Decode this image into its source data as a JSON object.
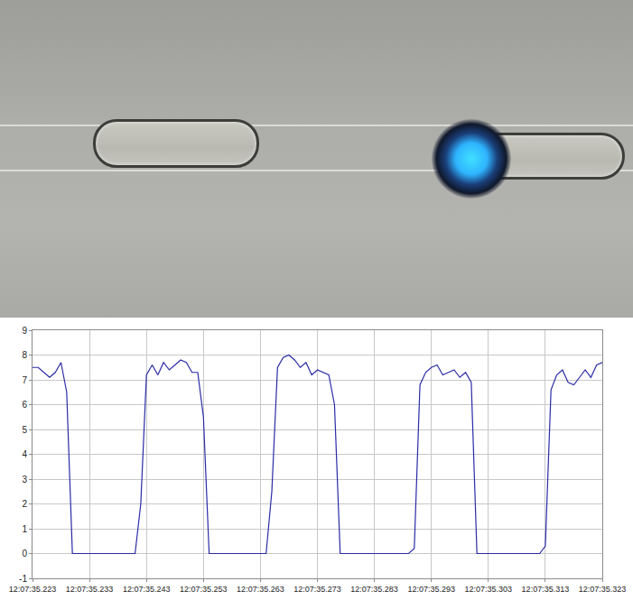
{
  "chart_data": {
    "type": "line",
    "color": "#2b2ba6",
    "x": [
      35.223,
      35.224,
      35.225,
      35.226,
      35.227,
      35.228,
      35.229,
      35.23,
      35.231,
      35.232,
      35.233,
      35.234,
      35.235,
      35.236,
      35.237,
      35.238,
      35.239,
      35.24,
      35.241,
      35.242,
      35.243,
      35.244,
      35.245,
      35.246,
      35.247,
      35.248,
      35.249,
      35.25,
      35.251,
      35.252,
      35.253,
      35.254,
      35.255,
      35.256,
      35.257,
      35.258,
      35.259,
      35.26,
      35.261,
      35.262,
      35.263,
      35.264,
      35.265,
      35.266,
      35.267,
      35.268,
      35.269,
      35.27,
      35.271,
      35.272,
      35.273,
      35.274,
      35.275,
      35.276,
      35.277,
      35.278,
      35.279,
      35.28,
      35.281,
      35.282,
      35.283,
      35.284,
      35.285,
      35.286,
      35.287,
      35.288,
      35.289,
      35.29,
      35.291,
      35.292,
      35.293,
      35.294,
      35.295,
      35.296,
      35.297,
      35.298,
      35.299,
      35.3,
      35.301,
      35.302,
      35.303,
      35.304,
      35.305,
      35.306,
      35.307,
      35.308,
      35.309,
      35.31,
      35.311,
      35.312,
      35.313,
      35.314,
      35.315,
      35.316,
      35.317,
      35.318,
      35.319,
      35.32,
      35.321,
      35.322,
      35.323
    ],
    "values": [
      7.5,
      7.5,
      7.3,
      7.1,
      7.3,
      7.7,
      6.5,
      0,
      0,
      0,
      0,
      0,
      0,
      0,
      0,
      0,
      0,
      0,
      0,
      2,
      7.2,
      7.6,
      7.2,
      7.7,
      7.4,
      7.6,
      7.8,
      7.7,
      7.3,
      7.3,
      5.5,
      0,
      0,
      0,
      0,
      0,
      0,
      0,
      0,
      0,
      0,
      0,
      2.5,
      7.5,
      7.9,
      8.0,
      7.8,
      7.5,
      7.7,
      7.2,
      7.4,
      7.3,
      7.2,
      6.0,
      0,
      0,
      0,
      0,
      0,
      0,
      0,
      0,
      0,
      0,
      0,
      0,
      0,
      0.2,
      6.8,
      7.3,
      7.5,
      7.6,
      7.2,
      7.3,
      7.4,
      7.1,
      7.3,
      6.9,
      0,
      0,
      0,
      0,
      0,
      0,
      0,
      0,
      0,
      0,
      0,
      0,
      0.3,
      6.6,
      7.2,
      7.4,
      6.9,
      6.8,
      7.1,
      7.4,
      7.1,
      7.6,
      7.7
    ],
    "xlim": [
      35.223,
      35.323
    ],
    "xticks": [
      {
        "value": 35.223,
        "label": "12:07:35.223"
      },
      {
        "value": 35.233,
        "label": "12:07:35.233"
      },
      {
        "value": 35.243,
        "label": "12:07:35.243"
      },
      {
        "value": 35.253,
        "label": "12:07:35.253"
      },
      {
        "value": 35.263,
        "label": "12:07:35.263"
      },
      {
        "value": 35.273,
        "label": "12:07:35.273"
      },
      {
        "value": 35.283,
        "label": "12:07:35.283"
      },
      {
        "value": 35.293,
        "label": "12:07:35.293"
      },
      {
        "value": 35.303,
        "label": "12:07:35.303"
      },
      {
        "value": 35.313,
        "label": "12:07:35.313"
      },
      {
        "value": 35.323,
        "label": "12:07:35.323"
      }
    ],
    "ylim": [
      -1,
      9
    ],
    "yticks": [
      -1,
      0,
      1,
      2,
      3,
      4,
      5,
      6,
      7,
      8,
      9
    ],
    "grid": true
  }
}
